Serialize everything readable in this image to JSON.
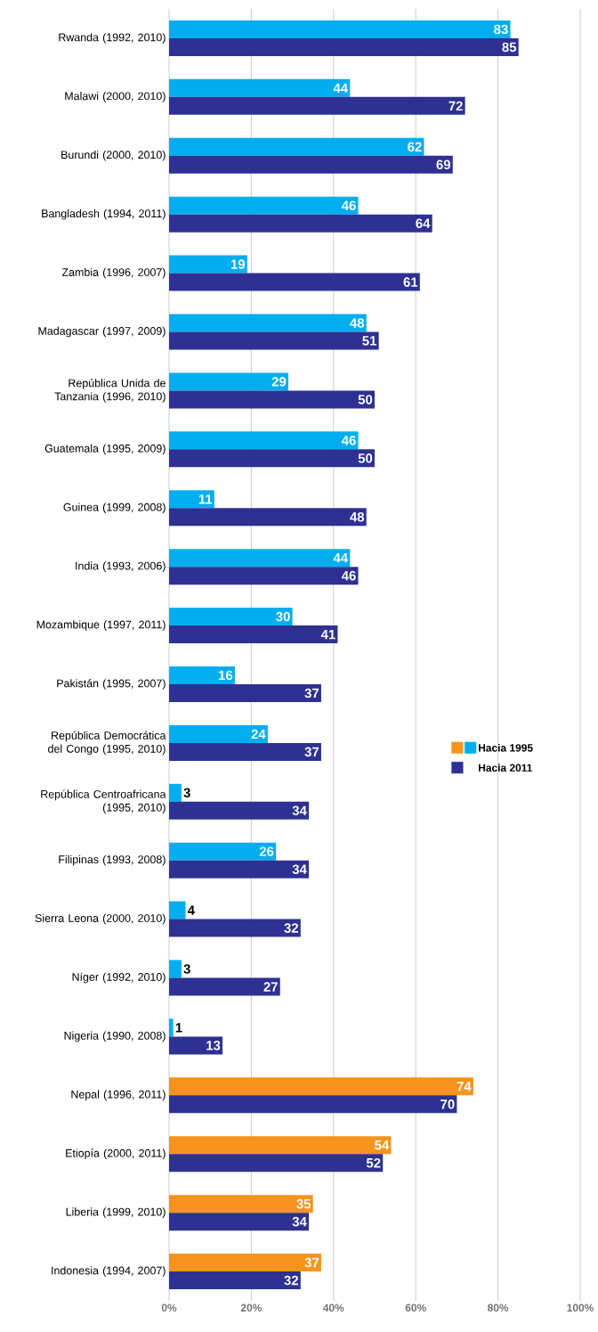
{
  "chart_data": {
    "type": "bar",
    "orientation": "horizontal",
    "categories": [
      "Rwanda (1992, 2010)",
      "Malawi (2000, 2010)",
      "Burundi (2000, 2010)",
      "Bangladesh (1994, 2011)",
      "Zambia (1996, 2007)",
      "Madagascar (1997, 2009)",
      "República Unida de Tanzania (1996, 2010)",
      "Guatemala (1995, 2009)",
      "Guinea (1999, 2008)",
      "India (1993, 2006)",
      "Mozambique (1997, 2011)",
      "Pakistán (1995, 2007)",
      "República Democrática del Congo (1995, 2010)",
      "República Centroafricana (1995, 2010)",
      "Filipinas (1993, 2008)",
      "Sierra Leona (2000, 2010)",
      "Níger (1992, 2010)",
      "Nigeria (1990, 2008)",
      "Nepal (1996, 2011)",
      "Etiopía (2000, 2011)",
      "Liberia (1999, 2010)",
      "Indonesia (1994, 2007)"
    ],
    "series": [
      {
        "name": "Hacia 1995",
        "color": "#00aeef",
        "colors": [
          "#00aeef",
          "#00aeef",
          "#00aeef",
          "#00aeef",
          "#00aeef",
          "#00aeef",
          "#00aeef",
          "#00aeef",
          "#00aeef",
          "#00aeef",
          "#00aeef",
          "#00aeef",
          "#00aeef",
          "#00aeef",
          "#00aeef",
          "#00aeef",
          "#00aeef",
          "#00aeef",
          "#f7941d",
          "#f7941d",
          "#f7941d",
          "#f7941d"
        ],
        "values": [
          83,
          44,
          62,
          46,
          19,
          48,
          29,
          46,
          11,
          44,
          30,
          16,
          24,
          3,
          26,
          4,
          3,
          1,
          74,
          54,
          35,
          37
        ]
      },
      {
        "name": "Hacia 2011",
        "color": "#2e3192",
        "values": [
          85,
          72,
          69,
          64,
          61,
          51,
          50,
          50,
          48,
          46,
          41,
          37,
          37,
          34,
          34,
          32,
          27,
          13,
          70,
          52,
          34,
          32
        ]
      }
    ],
    "xlim": [
      0,
      100
    ],
    "xticks": [
      {
        "value": 0,
        "label": "0%"
      },
      {
        "value": 20,
        "label": "20%"
      },
      {
        "value": 40,
        "label": "40%"
      },
      {
        "value": 60,
        "label": "60%"
      },
      {
        "value": 80,
        "label": "80%"
      },
      {
        "value": 100,
        "label": "100%"
      }
    ],
    "grid": "x",
    "legend": "right",
    "data_labels": true
  }
}
